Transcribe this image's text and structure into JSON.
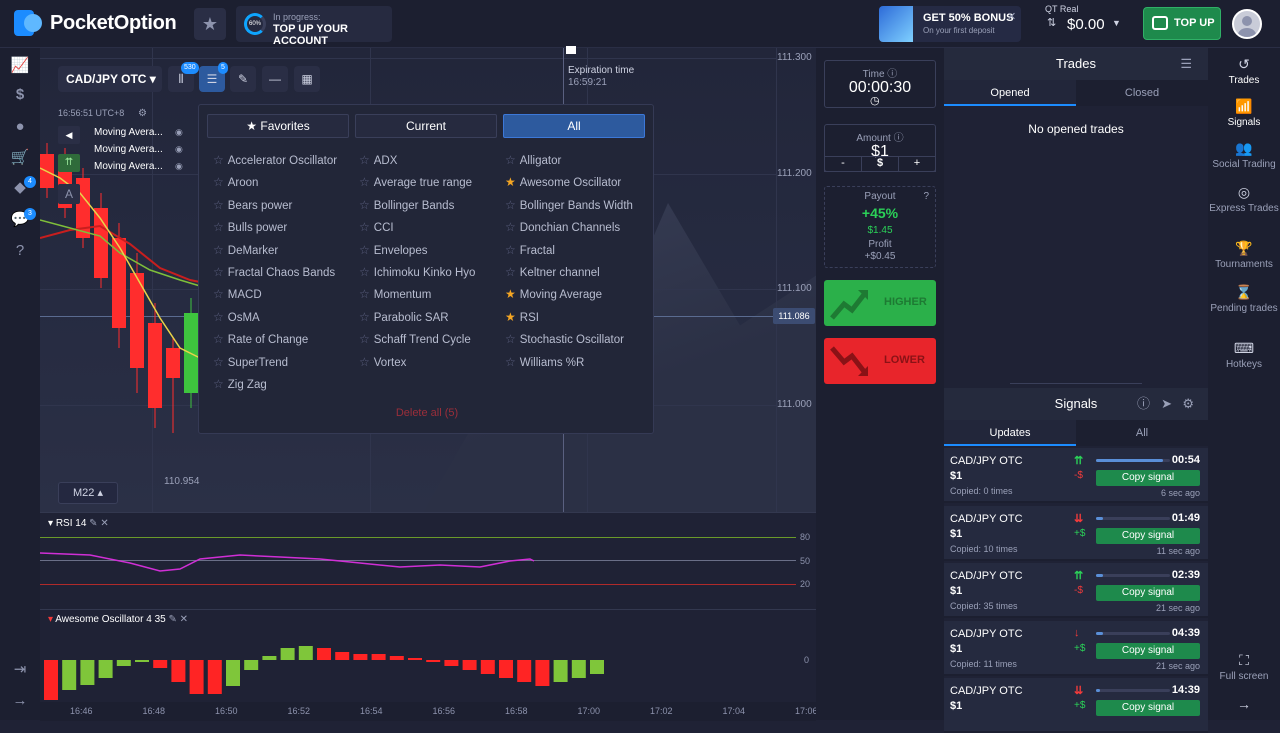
{
  "header": {
    "logo_text": "PocketOption",
    "progress": {
      "percent_label": "60%",
      "status": "In progress:",
      "title": "TOP UP YOUR ACCOUNT"
    },
    "promo": {
      "title": "GET 50% BONUS",
      "subtitle": "On your first deposit",
      "close": "✕"
    },
    "account": {
      "label": "QT Real",
      "balance": "$0.00"
    },
    "topup_label": "TOP UP"
  },
  "left_sidebar": {
    "badges": [
      "4",
      "3"
    ]
  },
  "chart": {
    "asset": "CAD/JPY OTC",
    "badges": {
      "indicators": "530",
      "settings": "5"
    },
    "clock": "16:56:51  UTC+8",
    "indicators_on_chart": [
      "Moving Avera...",
      "Moving Avera...",
      "Moving Avera..."
    ],
    "price_levels": [
      "111.300",
      "111.200",
      "111.100",
      "111.000"
    ],
    "current_price": "111.086",
    "low_price": "110.954",
    "timeframe": "M22",
    "expiration_label": "Expiration time",
    "expiration_time": "16:59:21",
    "time_labels": [
      "16:46",
      "16:48",
      "16:50",
      "16:52",
      "16:54",
      "16:56",
      "16:58",
      "17:00",
      "17:02",
      "17:04",
      "17:06"
    ]
  },
  "indicator_panel": {
    "tabs": [
      "Favorites",
      "Current",
      "All"
    ],
    "active_tab": "All",
    "columns": [
      [
        {
          "name": "Accelerator Oscillator",
          "fav": false
        },
        {
          "name": "Aroon",
          "fav": false
        },
        {
          "name": "Bears power",
          "fav": false
        },
        {
          "name": "Bulls power",
          "fav": false
        },
        {
          "name": "DeMarker",
          "fav": false
        },
        {
          "name": "Fractal Chaos Bands",
          "fav": false
        },
        {
          "name": "MACD",
          "fav": false
        },
        {
          "name": "OsMA",
          "fav": false
        },
        {
          "name": "Rate of Change",
          "fav": false
        },
        {
          "name": "SuperTrend",
          "fav": false
        },
        {
          "name": "Zig Zag",
          "fav": false
        }
      ],
      [
        {
          "name": "ADX",
          "fav": false
        },
        {
          "name": "Average true range",
          "fav": false
        },
        {
          "name": "Bollinger Bands",
          "fav": false
        },
        {
          "name": "CCI",
          "fav": false
        },
        {
          "name": "Envelopes",
          "fav": false
        },
        {
          "name": "Ichimoku Kinko Hyo",
          "fav": false
        },
        {
          "name": "Momentum",
          "fav": false
        },
        {
          "name": "Parabolic SAR",
          "fav": false
        },
        {
          "name": "Schaff Trend Cycle",
          "fav": false
        },
        {
          "name": "Vortex",
          "fav": false
        }
      ],
      [
        {
          "name": "Alligator",
          "fav": false
        },
        {
          "name": "Awesome Oscillator",
          "fav": true
        },
        {
          "name": "Bollinger Bands Width",
          "fav": false
        },
        {
          "name": "Donchian Channels",
          "fav": false
        },
        {
          "name": "Fractal",
          "fav": false
        },
        {
          "name": "Keltner channel",
          "fav": false
        },
        {
          "name": "Moving Average",
          "fav": true
        },
        {
          "name": "RSI",
          "fav": true
        },
        {
          "name": "Stochastic Oscillator",
          "fav": false
        },
        {
          "name": "Williams %R",
          "fav": false
        }
      ]
    ],
    "delete_all": "Delete all (5)"
  },
  "rsi_pane": {
    "title": "RSI 14",
    "levels": [
      "80",
      "50",
      "20"
    ]
  },
  "ao_pane": {
    "title": "Awesome Oscillator  4 35",
    "zero": "0"
  },
  "trade_panel": {
    "time_label": "Time",
    "time_value": "00:00:30",
    "amount_label": "Amount",
    "amount_value": "$1",
    "amount_minus": "-",
    "amount_currency": "$",
    "amount_plus": "+",
    "payout_label": "Payout",
    "payout_percent": "+45%",
    "payout_value": "$1.45",
    "profit_label": "Profit",
    "profit_value": "+$0.45",
    "higher": "HIGHER",
    "lower": "LOWER"
  },
  "trades": {
    "title": "Trades",
    "tabs": [
      "Opened",
      "Closed"
    ],
    "empty": "No opened trades"
  },
  "signals": {
    "title": "Signals",
    "tabs": [
      "Updates",
      "All"
    ],
    "items": [
      {
        "asset": "CAD/JPY OTC",
        "amount": "$1",
        "copied": "Copied: 0 times",
        "dir": "⇈",
        "dir_up": true,
        "result": "-$",
        "result_pos": false,
        "time": "00:54",
        "copy": "Copy signal",
        "ago": "6 sec ago",
        "progress": 0.9
      },
      {
        "asset": "CAD/JPY OTC",
        "amount": "$1",
        "copied": "Copied: 10 times",
        "dir": "⇊",
        "dir_up": false,
        "result": "+$",
        "result_pos": true,
        "time": "01:49",
        "copy": "Copy signal",
        "ago": "11 sec ago",
        "progress": 0.1
      },
      {
        "asset": "CAD/JPY OTC",
        "amount": "$1",
        "copied": "Copied: 35 times",
        "dir": "⇈",
        "dir_up": true,
        "result": "-$",
        "result_pos": false,
        "time": "02:39",
        "copy": "Copy signal",
        "ago": "21 sec ago",
        "progress": 0.1
      },
      {
        "asset": "CAD/JPY OTC",
        "amount": "$1",
        "copied": "Copied: 11 times",
        "dir": "↓",
        "dir_up": false,
        "result": "+$",
        "result_pos": true,
        "time": "04:39",
        "copy": "Copy signal",
        "ago": "21 sec ago",
        "progress": 0.1
      },
      {
        "asset": "CAD/JPY OTC",
        "amount": "$1",
        "copied": "",
        "dir": "⇊",
        "dir_up": false,
        "result": "+$",
        "result_pos": true,
        "time": "14:39",
        "copy": "Copy signal",
        "ago": "",
        "progress": 0.05
      }
    ]
  },
  "right_nav": {
    "items": [
      "Trades",
      "Signals",
      "Social Trading",
      "Express Trades",
      "Tournaments",
      "Pending trades",
      "Hotkeys"
    ],
    "fullscreen": "Full screen"
  },
  "colors": {
    "bg": "#1f2235",
    "green": "#2bb04a",
    "red": "#e8252b",
    "accent": "#1c8cff"
  }
}
